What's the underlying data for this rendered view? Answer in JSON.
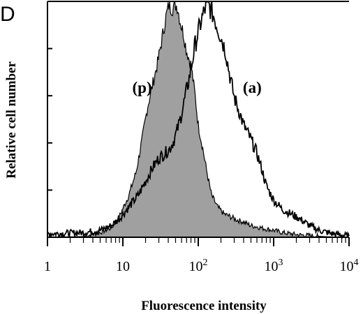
{
  "panel_label": "D",
  "chart_data": {
    "type": "area",
    "xlabel": "Fluorescence intensity",
    "ylabel": "Relative cell number",
    "x_scale": "log",
    "xlim": [
      1,
      10000
    ],
    "ylim": [
      0,
      100
    ],
    "grid": false,
    "x_tick_labels": [
      {
        "value": 1,
        "base": "1",
        "exp": ""
      },
      {
        "value": 10,
        "base": "10",
        "exp": ""
      },
      {
        "value": 100,
        "base": "10",
        "exp": "2"
      },
      {
        "value": 1000,
        "base": "10",
        "exp": "3"
      },
      {
        "value": 10000,
        "base": "10",
        "exp": "4"
      }
    ],
    "annotations": [
      {
        "text": "(p)",
        "x": 18,
        "y": 62
      },
      {
        "text": "(a)",
        "x": 520,
        "y": 62
      }
    ],
    "series": [
      {
        "name": "(p)",
        "style": "filled",
        "color": "#a0a0a0",
        "x": [
          1,
          3,
          5,
          7,
          9,
          12,
          15,
          18,
          21,
          25,
          29,
          33,
          37,
          41,
          45,
          49,
          53,
          58,
          63,
          70,
          80,
          90,
          100,
          115,
          130,
          150,
          180,
          220,
          260,
          320,
          400,
          500,
          600,
          800,
          1000,
          1300,
          1700,
          2200,
          3000,
          4500,
          6500,
          10000
        ],
        "y": [
          0,
          0.3,
          2,
          4,
          9,
          18,
          28,
          42,
          55,
          66,
          75,
          85,
          94,
          100,
          98,
          100,
          99,
          92,
          88,
          80,
          74,
          62,
          48,
          38,
          28,
          18,
          13,
          10,
          9,
          7.5,
          6.5,
          5,
          4.5,
          3.5,
          3,
          2,
          1.5,
          1,
          0.8,
          0.3,
          0.1,
          0
        ]
      },
      {
        "name": "(a)",
        "style": "outline",
        "color": "#000000",
        "x": [
          1,
          3,
          5,
          7,
          9,
          12,
          16,
          20,
          25,
          30,
          36,
          42,
          48,
          55,
          62,
          70,
          80,
          90,
          100,
          110,
          120,
          130,
          140,
          160,
          180,
          200,
          230,
          260,
          300,
          350,
          400,
          500,
          600,
          700,
          800,
          1000,
          1300,
          1700,
          2200,
          3000,
          4000,
          6000,
          10000
        ],
        "y": [
          1.5,
          2,
          3,
          5,
          8,
          13,
          18,
          24,
          30,
          34,
          36,
          38,
          42,
          48,
          55,
          63,
          72,
          82,
          88,
          93,
          97,
          100,
          99,
          95,
          90,
          86,
          80,
          70,
          60,
          54,
          48,
          42,
          36,
          29,
          22,
          16,
          12,
          10,
          8,
          5,
          3,
          1.5,
          0.5
        ]
      }
    ]
  }
}
